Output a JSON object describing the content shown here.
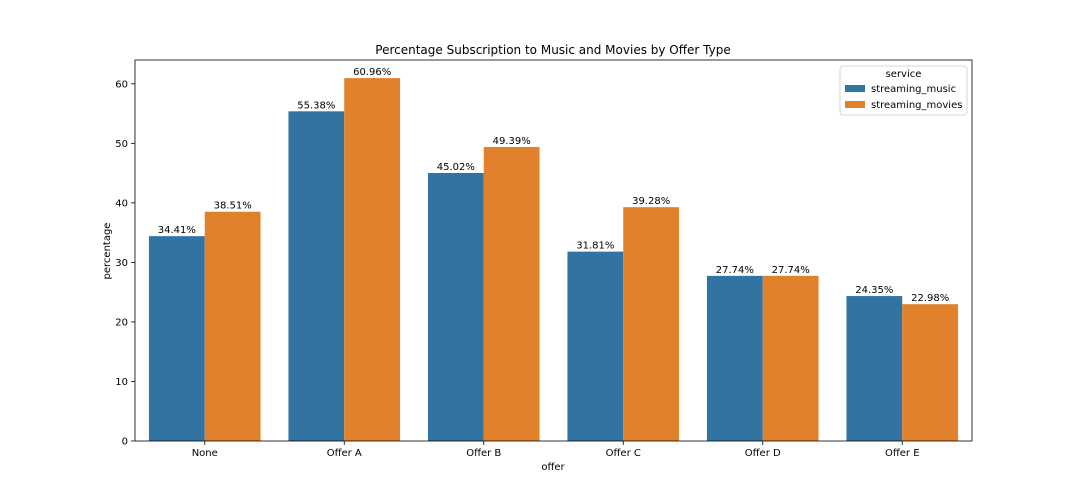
{
  "chart_data": {
    "type": "bar",
    "title": "Percentage Subscription to Music and Movies by Offer Type",
    "xlabel": "offer",
    "ylabel": "percentage",
    "categories": [
      "None",
      "Offer A",
      "Offer B",
      "Offer C",
      "Offer D",
      "Offer E"
    ],
    "series": [
      {
        "name": "streaming_music",
        "color": "#3274a1",
        "values": [
          34.41,
          55.38,
          45.02,
          31.81,
          27.74,
          24.35
        ],
        "labels": [
          "34.41%",
          "55.38%",
          "45.02%",
          "31.81%",
          "27.74%",
          "24.35%"
        ]
      },
      {
        "name": "streaming_movies",
        "color": "#e1812c",
        "values": [
          38.51,
          60.96,
          49.39,
          39.28,
          27.74,
          22.98
        ],
        "labels": [
          "38.51%",
          "60.96%",
          "49.39%",
          "39.28%",
          "27.74%",
          "22.98%"
        ]
      }
    ],
    "ylim": [
      0,
      64
    ],
    "yticks": [
      0,
      10,
      20,
      30,
      40,
      50,
      60
    ],
    "legend": {
      "title": "service",
      "position": "top-right"
    },
    "grid": false
  }
}
